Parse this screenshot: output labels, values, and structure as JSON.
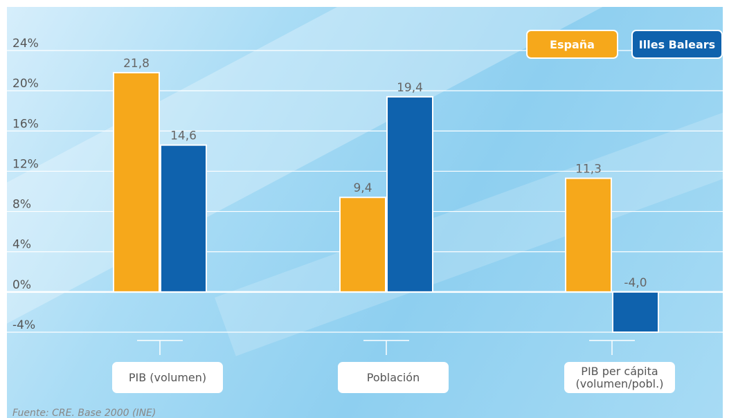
{
  "chart_data": {
    "type": "bar",
    "categories": [
      "PIB (volumen)",
      "Población",
      "PIB per cápita\n(volumen/pobl.)"
    ],
    "series": [
      {
        "name": "España",
        "values": [
          21.8,
          9.4,
          11.3
        ],
        "labels": [
          "21,8",
          "9,4",
          "11,3"
        ],
        "color": "#f6a81b"
      },
      {
        "name": "Illes Balears",
        "values": [
          14.6,
          19.4,
          -4.0
        ],
        "labels": [
          "14,6",
          "19,4",
          "-4,0"
        ],
        "color": "#0f62ad"
      }
    ],
    "yticks": [
      "24%",
      "20%",
      "16%",
      "12%",
      "8%",
      "4%",
      "0%",
      "-4%"
    ],
    "ytick_values": [
      24,
      20,
      16,
      12,
      8,
      4,
      0,
      -4
    ],
    "ylim": [
      -4,
      24
    ],
    "grid": true,
    "legend_position": "top-right"
  },
  "legend": {
    "espana": "España",
    "baleares": "Illes Balears"
  },
  "source": "Fuente: CRE. Base 2000 (INE)"
}
